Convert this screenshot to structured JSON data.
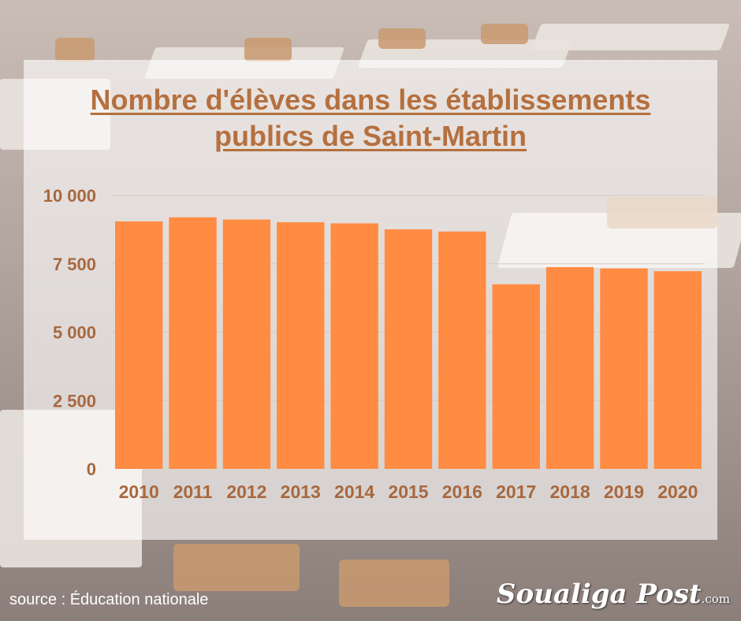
{
  "title_line1": "Nombre d'élèves dans les établissements",
  "title_line2": "publics de Saint-Martin",
  "source": "source : Éducation nationale",
  "logo": {
    "name": "Soualiga Post",
    "suffix": ".com"
  },
  "colors": {
    "bar": "#ff8c42",
    "text": "#a8683f",
    "grid": "#d9c9bf"
  },
  "chart_data": {
    "type": "bar",
    "title": "Nombre d'élèves dans les établissements publics de Saint-Martin",
    "categories": [
      "2010",
      "2011",
      "2012",
      "2013",
      "2014",
      "2015",
      "2016",
      "2017",
      "2018",
      "2019",
      "2020"
    ],
    "values": [
      9050,
      9200,
      9120,
      9020,
      8980,
      8760,
      8680,
      6750,
      7380,
      7330,
      7230
    ],
    "ylim": [
      0,
      10000
    ],
    "yticks": [
      0,
      2500,
      5000,
      7500,
      10000
    ],
    "ytick_labels": [
      "0",
      "2 500",
      "5 000",
      "7 500",
      "10 000"
    ],
    "xlabel": "",
    "ylabel": "",
    "grid": true
  }
}
